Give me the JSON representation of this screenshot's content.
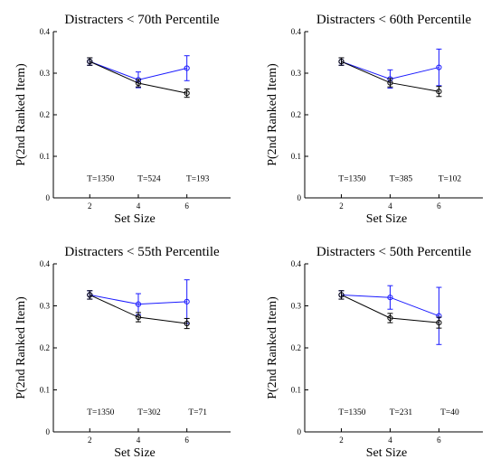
{
  "chart_data": [
    {
      "type": "line",
      "title": "Distracters < 70th Percentile",
      "xlabel": "Set Size",
      "ylabel": "P(2nd Ranked Item)",
      "xlim": [
        0.5,
        7.8
      ],
      "ylim": [
        0,
        0.4
      ],
      "xticks": [
        2,
        4,
        6
      ],
      "yticks": [
        0,
        0.1,
        0.2,
        0.3,
        0.4
      ],
      "x": [
        2,
        4,
        6
      ],
      "series": [
        {
          "color": "#000000",
          "values": [
            0.328,
            0.276,
            0.252
          ],
          "err": [
            0.009,
            0.009,
            0.01
          ]
        },
        {
          "color": "#1a1aff",
          "values": [
            0.328,
            0.284,
            0.312
          ],
          "err": [
            0.009,
            0.019,
            0.03
          ]
        }
      ],
      "annotations": [
        {
          "text": "T=1350",
          "x": 2.0,
          "y": 0.047
        },
        {
          "text": "T=524",
          "x": 4.0,
          "y": 0.047
        },
        {
          "text": "T=193",
          "x": 6.0,
          "y": 0.047
        }
      ]
    },
    {
      "type": "line",
      "title": "Distracters < 60th Percentile",
      "xlabel": "Set Size",
      "ylabel": "P(2nd Ranked Item)",
      "xlim": [
        0.5,
        7.8
      ],
      "ylim": [
        0,
        0.4
      ],
      "xticks": [
        2,
        4,
        6
      ],
      "yticks": [
        0,
        0.1,
        0.2,
        0.3,
        0.4
      ],
      "x": [
        2,
        4,
        6
      ],
      "series": [
        {
          "color": "#000000",
          "values": [
            0.328,
            0.277,
            0.256
          ],
          "err": [
            0.009,
            0.01,
            0.012
          ]
        },
        {
          "color": "#1a1aff",
          "values": [
            0.328,
            0.286,
            0.314
          ],
          "err": [
            0.009,
            0.022,
            0.044
          ]
        }
      ],
      "annotations": [
        {
          "text": "T=1350",
          "x": 2.0,
          "y": 0.047
        },
        {
          "text": "T=385",
          "x": 4.0,
          "y": 0.047
        },
        {
          "text": "T=102",
          "x": 6.0,
          "y": 0.047
        }
      ]
    },
    {
      "type": "line",
      "title": "Distracters < 55th Percentile",
      "xlabel": "Set Size",
      "ylabel": "P(2nd Ranked Item)",
      "xlim": [
        0.5,
        7.8
      ],
      "ylim": [
        0,
        0.4
      ],
      "xticks": [
        2,
        4,
        6
      ],
      "yticks": [
        0,
        0.1,
        0.2,
        0.3,
        0.4
      ],
      "x": [
        2,
        4,
        6
      ],
      "series": [
        {
          "color": "#000000",
          "values": [
            0.326,
            0.273,
            0.258
          ],
          "err": [
            0.01,
            0.011,
            0.012
          ]
        },
        {
          "color": "#1a1aff",
          "values": [
            0.326,
            0.304,
            0.31
          ],
          "err": [
            0.01,
            0.025,
            0.052
          ]
        }
      ],
      "annotations": [
        {
          "text": "T=1350",
          "x": 2.0,
          "y": 0.047
        },
        {
          "text": "T=302",
          "x": 4.0,
          "y": 0.047
        },
        {
          "text": "T=71",
          "x": 6.0,
          "y": 0.047
        }
      ]
    },
    {
      "type": "line",
      "title": "Distracters < 50th Percentile",
      "xlabel": "Set Size",
      "ylabel": "P(2nd Ranked Item)",
      "xlim": [
        0.5,
        7.8
      ],
      "ylim": [
        0,
        0.4
      ],
      "xticks": [
        2,
        4,
        6
      ],
      "yticks": [
        0,
        0.1,
        0.2,
        0.3,
        0.4
      ],
      "x": [
        2,
        4,
        6
      ],
      "series": [
        {
          "color": "#000000",
          "values": [
            0.326,
            0.271,
            0.26
          ],
          "err": [
            0.01,
            0.011,
            0.013
          ]
        },
        {
          "color": "#1a1aff",
          "values": [
            0.326,
            0.32,
            0.276
          ],
          "err": [
            0.01,
            0.028,
            0.068
          ]
        }
      ],
      "annotations": [
        {
          "text": "T=1350",
          "x": 2.0,
          "y": 0.047
        },
        {
          "text": "T=231",
          "x": 4.0,
          "y": 0.047
        },
        {
          "text": "T=40",
          "x": 6.0,
          "y": 0.047
        }
      ]
    }
  ]
}
